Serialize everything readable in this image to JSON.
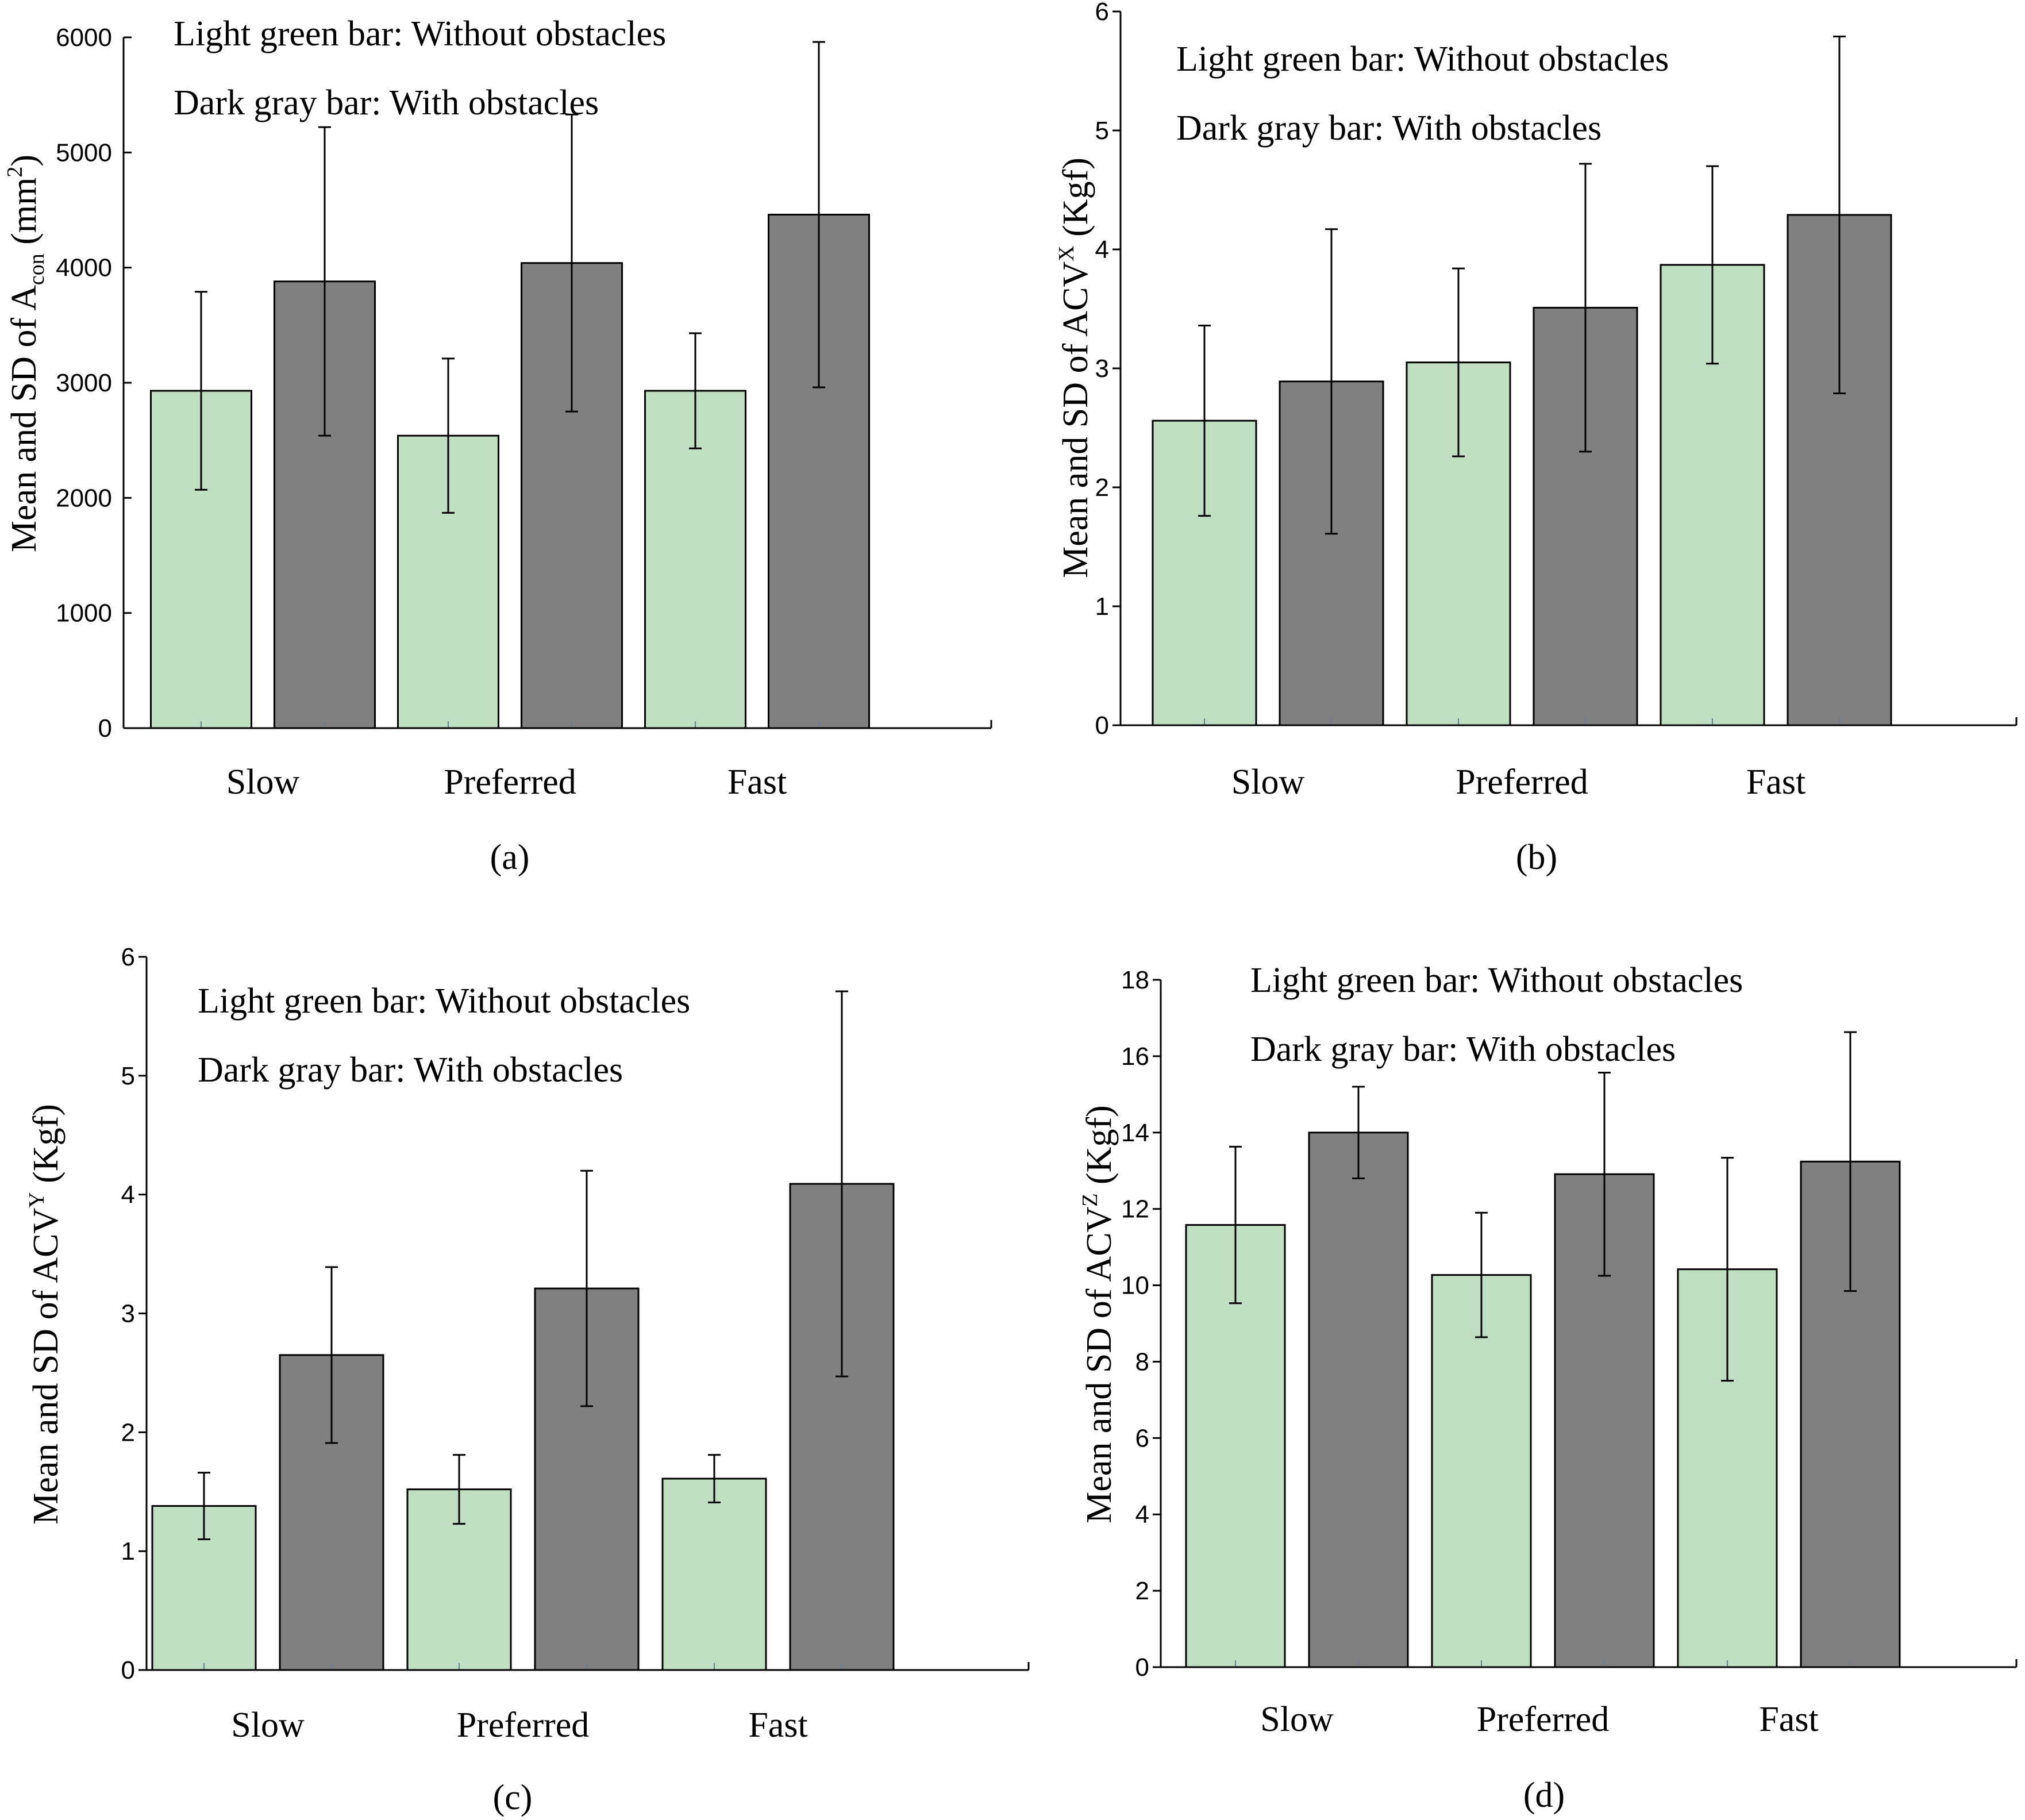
{
  "figure": {
    "legend": {
      "light": "Light green bar: Without obstacles",
      "dark": "Dark gray bar: With obstacles"
    },
    "colors": {
      "light": "#c0dec2",
      "dark": "#808080",
      "axis": "#000000",
      "error": "#000000",
      "tick_mark": "#6a7f96"
    }
  },
  "chart_data": [
    {
      "type": "bar",
      "panel_label": "(a)",
      "title": "",
      "categories": [
        "Slow",
        "Preferred",
        "Fast"
      ],
      "ylabel": {
        "text": "Mean and SD of A",
        "sub": "con",
        "paren": "(mm",
        "sup": "2",
        "close": ")"
      },
      "ylim": [
        0,
        6000
      ],
      "yticks": [
        0,
        1000,
        2000,
        3000,
        4000,
        5000,
        6000
      ],
      "series": [
        {
          "name": "Without obstacles",
          "color": "#c0dec2",
          "values": [
            2930,
            2540,
            2930
          ],
          "errors": [
            860,
            670,
            500
          ]
        },
        {
          "name": "With obstacles",
          "color": "#808080",
          "values": [
            3880,
            4040,
            4460
          ],
          "errors": [
            1340,
            1290,
            1500
          ]
        }
      ]
    },
    {
      "type": "bar",
      "panel_label": "(b)",
      "title": "",
      "categories": [
        "Slow",
        "Preferred",
        "Fast"
      ],
      "ylabel": {
        "text": "Mean and SD of ACV",
        "sup": "X",
        "after": " (Kgf)"
      },
      "ylim": [
        0,
        6
      ],
      "yticks": [
        0,
        1,
        2,
        3,
        4,
        5,
        6
      ],
      "series": [
        {
          "name": "Without obstacles",
          "color": "#c0dec2",
          "values": [
            2.56,
            3.05,
            3.87
          ],
          "errors": [
            0.8,
            0.79,
            0.83
          ]
        },
        {
          "name": "With obstacles",
          "color": "#808080",
          "values": [
            2.89,
            3.51,
            4.29
          ],
          "errors": [
            1.28,
            1.21,
            1.5
          ]
        }
      ]
    },
    {
      "type": "bar",
      "panel_label": "(c)",
      "title": "",
      "categories": [
        "Slow",
        "Preferred",
        "Fast"
      ],
      "ylabel": {
        "text": "Mean and SD of ACV",
        "sup": "Y",
        "after": " (Kgf)"
      },
      "ylim": [
        0,
        6
      ],
      "yticks": [
        0,
        1,
        2,
        3,
        4,
        5,
        6
      ],
      "series": [
        {
          "name": "Without obstacles",
          "color": "#c0dec2",
          "values": [
            1.38,
            1.52,
            1.61
          ],
          "errors": [
            0.28,
            0.29,
            0.2
          ]
        },
        {
          "name": "With obstacles",
          "color": "#808080",
          "values": [
            2.65,
            3.21,
            4.09
          ],
          "errors": [
            0.74,
            0.99,
            1.62
          ]
        }
      ]
    },
    {
      "type": "bar",
      "panel_label": "(d)",
      "title": "",
      "categories": [
        "Slow",
        "Preferred",
        "Fast"
      ],
      "ylabel": {
        "text": "Mean and SD of ACV",
        "sup": "Z",
        "after": " (Kgf)"
      },
      "ylim": [
        0,
        18
      ],
      "yticks": [
        0,
        2,
        4,
        6,
        8,
        10,
        12,
        14,
        16,
        18
      ],
      "series": [
        {
          "name": "Without obstacles",
          "color": "#c0dec2",
          "values": [
            11.58,
            10.27,
            10.42
          ],
          "errors": [
            2.05,
            1.63,
            2.92
          ]
        },
        {
          "name": "With obstacles",
          "color": "#808080",
          "values": [
            14.0,
            12.91,
            13.24
          ],
          "errors": [
            1.2,
            2.66,
            3.39
          ]
        }
      ]
    }
  ]
}
